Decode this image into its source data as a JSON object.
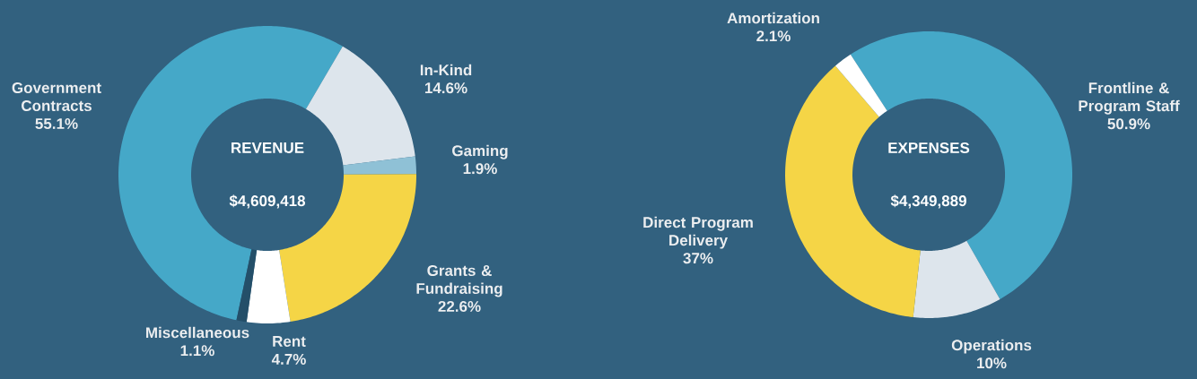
{
  "chart_data": [
    {
      "type": "donut",
      "title": "REVENUE",
      "subtitle": "$4,609,418",
      "categories": [
        "Government Contracts",
        "In-Kind",
        "Gaming",
        "Grants & Fundraising",
        "Rent",
        "Miscellaneous"
      ],
      "values": [
        55.1,
        14.6,
        1.9,
        22.6,
        4.7,
        1.1
      ],
      "colors": [
        "#45a8c8",
        "#dde5ec",
        "#8fc1d6",
        "#f5d546",
        "#ffffff",
        "#244f69"
      ],
      "value_labels": [
        "55.1%",
        "14.6%",
        "1.9%",
        "22.6%",
        "4.7%",
        "1.1%"
      ]
    },
    {
      "type": "donut",
      "title": "EXPENSES",
      "subtitle": "$4,349,889",
      "categories": [
        "Frontline & Program Staff",
        "Operations",
        "Direct Program Delivery",
        "Amortization"
      ],
      "values": [
        50.9,
        10,
        37,
        2.1
      ],
      "colors": [
        "#45a8c8",
        "#dde5ec",
        "#f5d546",
        "#ffffff"
      ],
      "value_labels": [
        "50.9%",
        "10%",
        "37%",
        "2.1%"
      ]
    }
  ]
}
